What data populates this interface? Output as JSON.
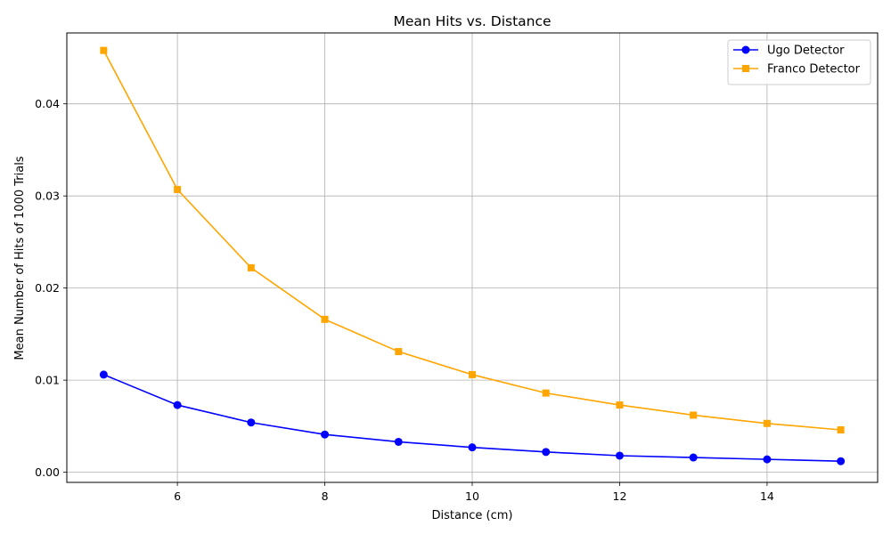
{
  "chart_data": {
    "type": "line",
    "title": "Mean Hits vs. Distance",
    "xlabel": "Distance (cm)",
    "ylabel": "Mean Number of Hits of 1000 Trials",
    "xlim": [
      4.5,
      15.5
    ],
    "ylim": [
      -0.0011,
      0.0477
    ],
    "xticks": [
      6,
      8,
      10,
      12,
      14
    ],
    "xtick_labels": [
      "6",
      "8",
      "10",
      "12",
      "14"
    ],
    "yticks": [
      0.0,
      0.01,
      0.02,
      0.03,
      0.04
    ],
    "ytick_labels": [
      "0.00",
      "0.01",
      "0.02",
      "0.03",
      "0.04"
    ],
    "grid": true,
    "legend_position": "top-right",
    "x": [
      5,
      6,
      7,
      8,
      9,
      10,
      11,
      12,
      13,
      14,
      15
    ],
    "series": [
      {
        "name": "Ugo Detector",
        "color": "#0000ff",
        "marker": "circle",
        "values": [
          0.0106,
          0.0073,
          0.0054,
          0.0041,
          0.0033,
          0.0027,
          0.0022,
          0.0018,
          0.0016,
          0.0014,
          0.0012
        ]
      },
      {
        "name": "Franco Detector",
        "color": "#ffa500",
        "marker": "square",
        "values": [
          0.0458,
          0.0307,
          0.0222,
          0.0166,
          0.0131,
          0.0106,
          0.0086,
          0.0073,
          0.0062,
          0.0053,
          0.0046
        ]
      }
    ]
  }
}
